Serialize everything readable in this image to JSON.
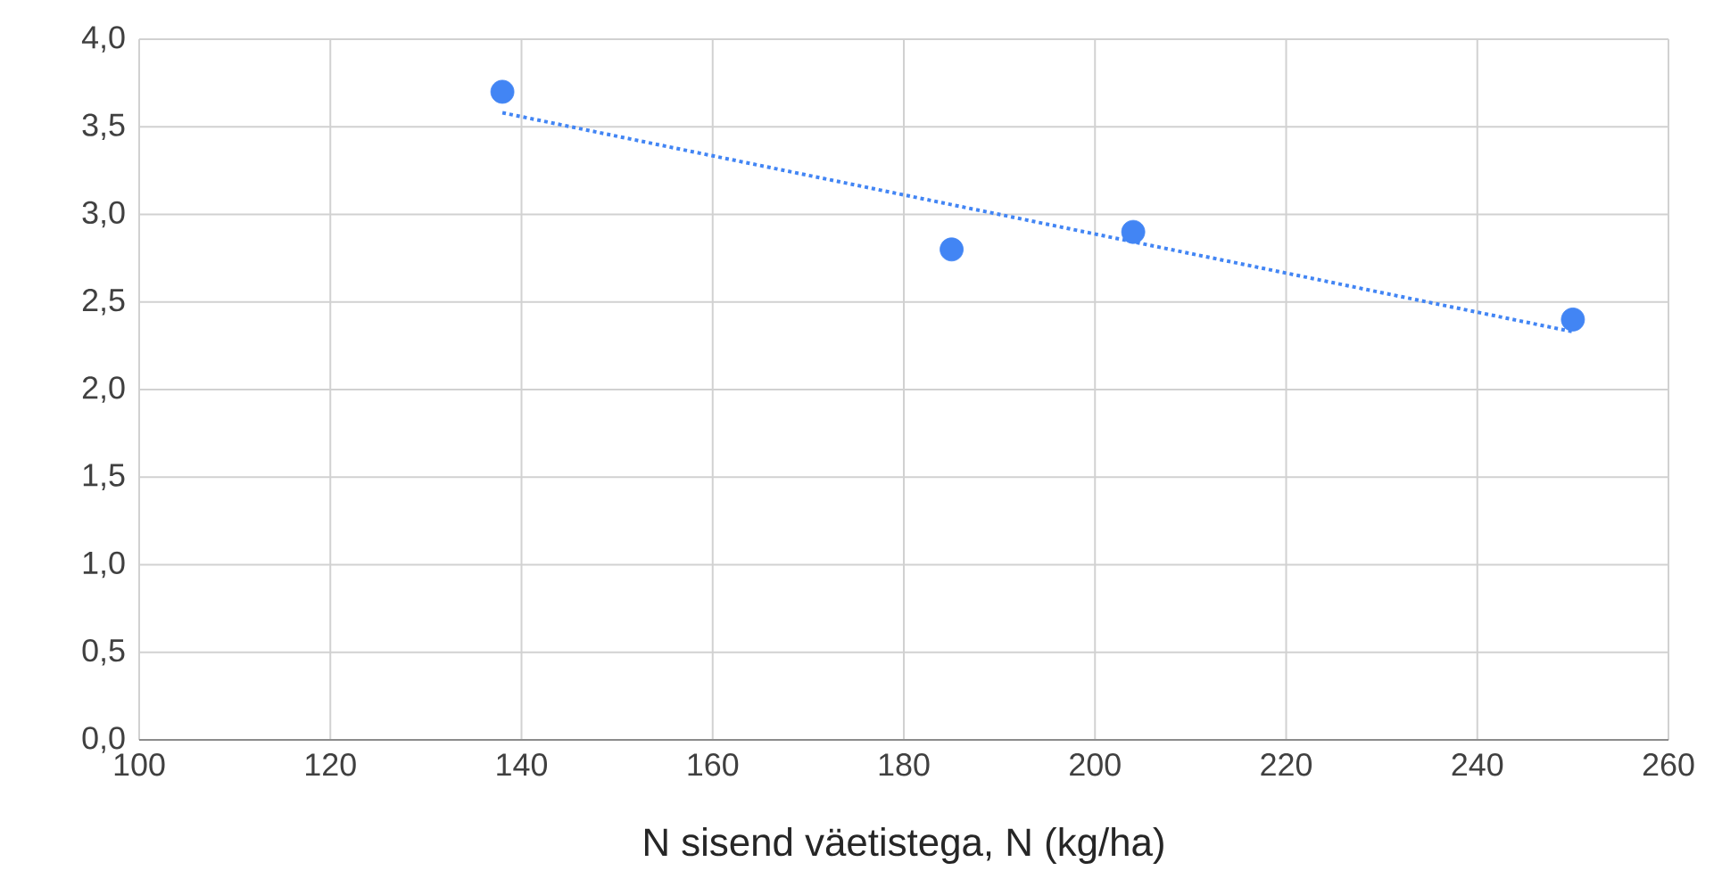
{
  "chart_data": {
    "type": "scatter",
    "xlabel": "N sisend väetistega, N (kg/ha)",
    "series": [
      {
        "type": "scatter",
        "color": "#4285f4",
        "x": [
          138,
          185,
          204,
          250
        ],
        "values": [
          3.7,
          2.8,
          2.9,
          2.4
        ],
        "marker": "circle"
      },
      {
        "type": "line",
        "color": "#4285f4",
        "x": [
          138,
          250
        ],
        "values": [
          3.58,
          2.33
        ],
        "marker": "none",
        "line_style": "dotted"
      }
    ],
    "xlim": [
      100,
      260
    ],
    "xticks": [
      100,
      120,
      140,
      160,
      180,
      200,
      220,
      240,
      260
    ],
    "ylim": [
      0,
      4
    ],
    "yticks": [
      {
        "value": 0,
        "label": "0,0"
      },
      {
        "value": 0.5,
        "label": "0,5"
      },
      {
        "value": 1,
        "label": "1,0"
      },
      {
        "value": 1.5,
        "label": "1,5"
      },
      {
        "value": 2,
        "label": "2,0"
      },
      {
        "value": 2.5,
        "label": "2,5"
      },
      {
        "value": 3,
        "label": "3,0"
      },
      {
        "value": 3.5,
        "label": "3,5"
      },
      {
        "value": 4,
        "label": "4,0"
      }
    ],
    "grid": true
  }
}
